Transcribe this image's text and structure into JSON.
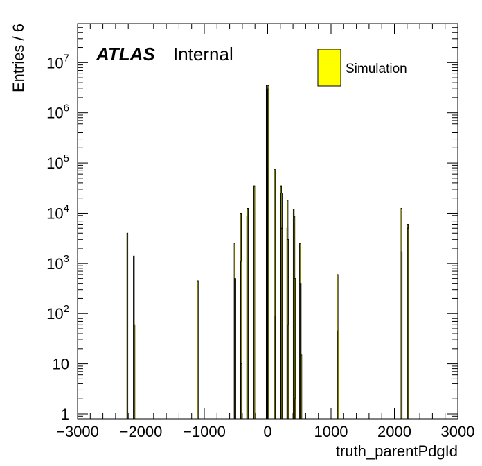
{
  "chart_data": {
    "type": "bar",
    "xlabel": "truth_parentPdgId",
    "ylabel": "Entries / 6",
    "xlim": [
      -3000,
      3000
    ],
    "ylim": [
      0.8,
      60000000
    ],
    "log_y": true,
    "grid": false,
    "legend_placement": "top-right",
    "x_ticks": [
      {
        "value": -3000,
        "label": "−3000"
      },
      {
        "value": -2000,
        "label": "−2000"
      },
      {
        "value": -1000,
        "label": "−1000"
      },
      {
        "value": 0,
        "label": "0"
      },
      {
        "value": 1000,
        "label": "1000"
      },
      {
        "value": 2000,
        "label": "2000"
      },
      {
        "value": 3000,
        "label": "3000"
      }
    ],
    "y_ticks": [
      {
        "value": 1,
        "base": "1",
        "exp": ""
      },
      {
        "value": 10,
        "base": "10",
        "exp": ""
      },
      {
        "value": 100,
        "base": "10",
        "exp": "2"
      },
      {
        "value": 1000,
        "base": "10",
        "exp": "3"
      },
      {
        "value": 10000,
        "base": "10",
        "exp": "4"
      },
      {
        "value": 100000,
        "base": "10",
        "exp": "5"
      },
      {
        "value": 1000000,
        "base": "10",
        "exp": "6"
      },
      {
        "value": 10000000,
        "base": "10",
        "exp": "7"
      }
    ],
    "series": [
      {
        "name": "Simulation",
        "color": "#ffff00",
        "edge_color": "#000000",
        "bins": [
          {
            "x": -2214,
            "y": 4000
          },
          {
            "x": -2112,
            "y": 1400
          },
          {
            "x": -2103,
            "y": 60
          },
          {
            "x": -1103,
            "y": 450
          },
          {
            "x": -521,
            "y": 2500
          },
          {
            "x": -511,
            "y": 500
          },
          {
            "x": -423,
            "y": 10000
          },
          {
            "x": -413,
            "y": 1100
          },
          {
            "x": -411,
            "y": 10
          },
          {
            "x": -323,
            "y": 8500
          },
          {
            "x": -313,
            "y": 12500
          },
          {
            "x": -211,
            "y": 35000
          },
          {
            "x": -15,
            "y": 3500000
          },
          {
            "x": -13,
            "y": 3000000
          },
          {
            "x": -11,
            "y": 70000
          },
          {
            "x": -5,
            "y": 300
          },
          {
            "x": -3,
            "y": 10
          },
          {
            "x": 3,
            "y": 80000
          },
          {
            "x": 5,
            "y": 600
          },
          {
            "x": 11,
            "y": 70000
          },
          {
            "x": 13,
            "y": 3500000
          },
          {
            "x": 15,
            "y": 3000000
          },
          {
            "x": 111,
            "y": 75000
          },
          {
            "x": 113,
            "y": 90
          },
          {
            "x": 211,
            "y": 35000
          },
          {
            "x": 221,
            "y": 25000
          },
          {
            "x": 223,
            "y": 5000
          },
          {
            "x": 311,
            "y": 5000
          },
          {
            "x": 313,
            "y": 18000
          },
          {
            "x": 321,
            "y": 3000
          },
          {
            "x": 323,
            "y": 60
          },
          {
            "x": 411,
            "y": 12000
          },
          {
            "x": 421,
            "y": 8500
          },
          {
            "x": 423,
            "y": 10
          },
          {
            "x": 431,
            "y": 500
          },
          {
            "x": 433,
            "y": 2
          },
          {
            "x": 511,
            "y": 2500
          },
          {
            "x": 521,
            "y": 400
          },
          {
            "x": 531,
            "y": 15
          },
          {
            "x": 1103,
            "y": 600
          },
          {
            "x": 1114,
            "y": 45
          },
          {
            "x": 2112,
            "y": 12500
          },
          {
            "x": 2114,
            "y": 1700
          },
          {
            "x": 2212,
            "y": 6000
          },
          {
            "x": 2214,
            "y": 5000
          }
        ]
      }
    ]
  },
  "labels": {
    "atlas": "ATLAS",
    "internal": "Internal"
  }
}
